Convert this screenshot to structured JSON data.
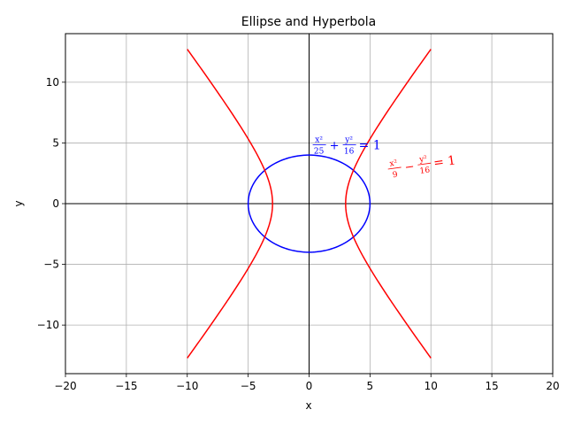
{
  "chart_data": {
    "type": "line",
    "title": "Ellipse and Hyperbola",
    "xlabel": "x",
    "ylabel": "y",
    "xlim": [
      -20,
      20
    ],
    "ylim": [
      -14,
      14
    ],
    "xticks": [
      -20,
      -15,
      -10,
      -5,
      0,
      5,
      10,
      15,
      20
    ],
    "yticks": [
      -10,
      -5,
      0,
      5,
      10
    ],
    "xtick_labels": [
      "−20",
      "−15",
      "−10",
      "−5",
      "0",
      "5",
      "10",
      "15",
      "20"
    ],
    "ytick_labels": [
      "−10",
      "−5",
      "0",
      "5",
      "10"
    ],
    "grid": true,
    "series": [
      {
        "kind": "ellipse",
        "a": 5,
        "b": 4,
        "color": "#0000ff",
        "annotation": {
          "x": 0.3,
          "y": 4.7,
          "rotation": 0,
          "parts": [
            "x²",
            "25",
            "+",
            "y²",
            "16",
            "= 1"
          ]
        }
      },
      {
        "kind": "hyperbola",
        "a": 3,
        "b": 4,
        "x_range": [
          -10,
          10
        ],
        "color": "#ff0000",
        "annotation": {
          "x": 6.5,
          "y": 2.7,
          "rotation": -8,
          "parts": [
            "x²",
            "9",
            "−",
            "y²",
            "16",
            "= 1"
          ]
        }
      }
    ]
  }
}
